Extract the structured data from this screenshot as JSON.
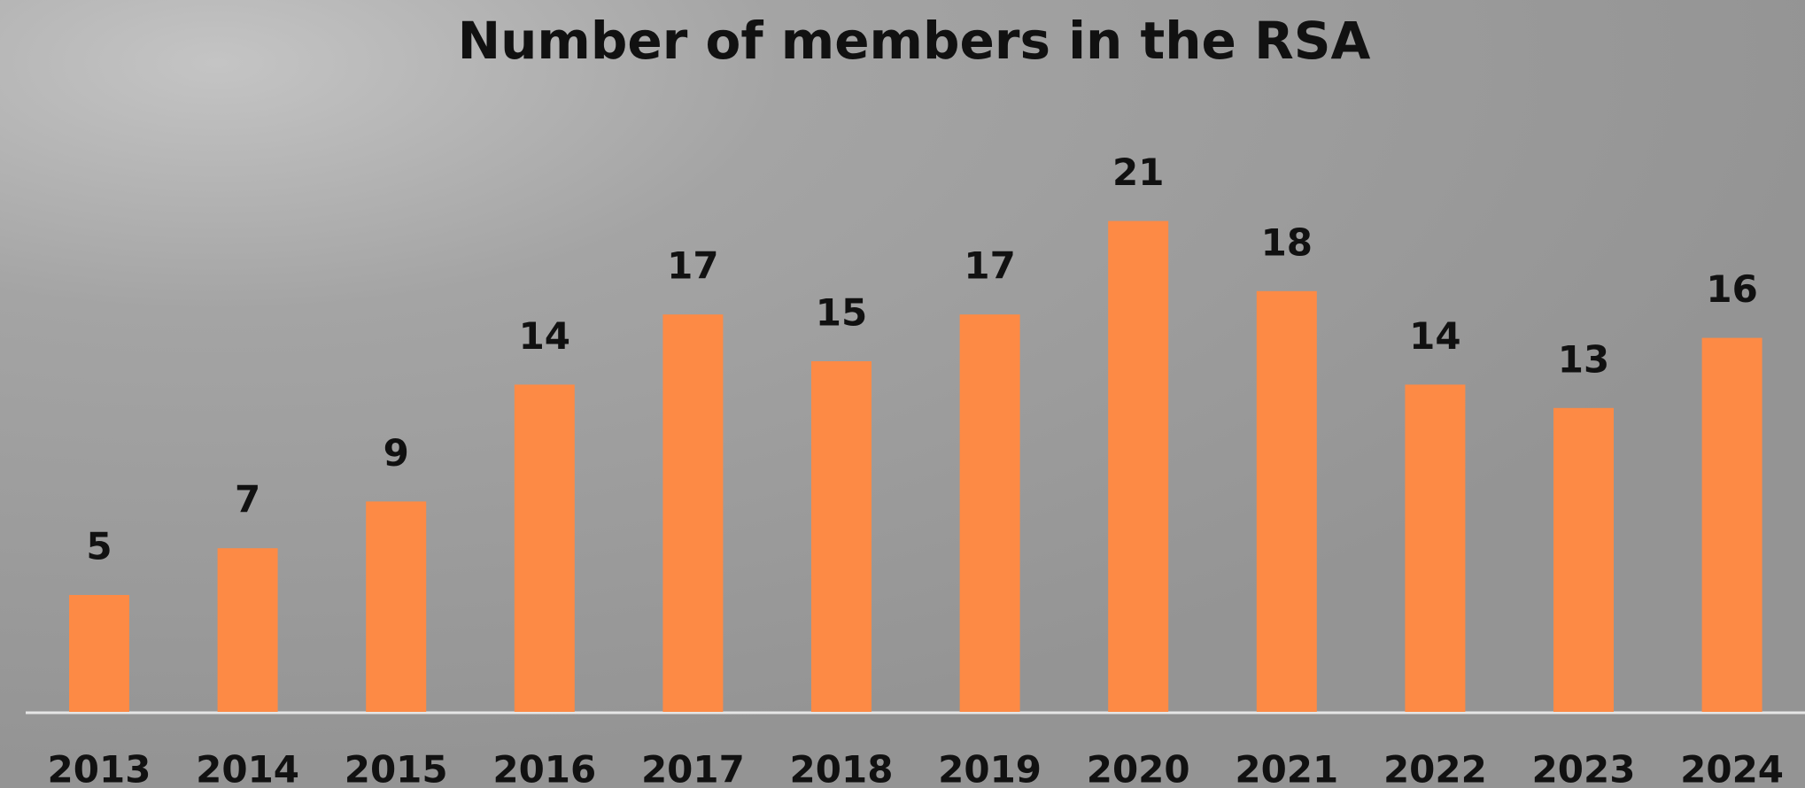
{
  "chart_data": {
    "type": "bar",
    "title": "Number of members in the RSA",
    "categories": [
      "2013",
      "2014",
      "2015",
      "2016",
      "2017",
      "2018",
      "2019",
      "2020",
      "2021",
      "2022",
      "2023",
      "2024"
    ],
    "values": [
      5,
      7,
      9,
      14,
      17,
      15,
      17,
      21,
      18,
      14,
      13,
      16
    ],
    "color": "#fd8a45"
  }
}
